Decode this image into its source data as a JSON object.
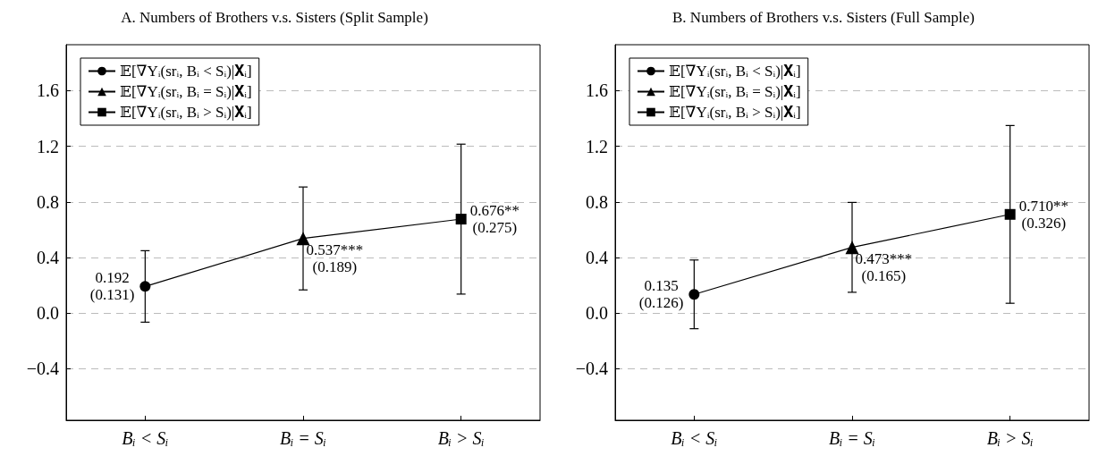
{
  "chart_data": [
    {
      "type": "line",
      "title": "A. Numbers of Brothers v.s. Sisters (Split Sample)",
      "categories": [
        "Bᵢ < Sᵢ",
        "Bᵢ = Sᵢ",
        "Bᵢ > Sᵢ"
      ],
      "series": [
        {
          "color": "#000000",
          "values": [
            0.192,
            0.537,
            0.676
          ],
          "marker": "none"
        },
        {
          "name": "𝔼[∇Yᵢ(srᵢ, Bᵢ < Sᵢ)|𝐗ᵢ]",
          "color": "#000000",
          "marker": "circle",
          "values": [
            0.192,
            null,
            null
          ],
          "errors": [
            [
              -0.065,
              0.449
            ],
            null,
            null
          ],
          "value_labels": [
            "0.192\n(0.131)",
            null,
            null
          ]
        },
        {
          "name": "𝔼[∇Yᵢ(srᵢ, Bᵢ = Sᵢ)|𝐗ᵢ]",
          "color": "#000000",
          "marker": "triangle",
          "values": [
            null,
            0.537,
            null
          ],
          "errors": [
            null,
            [
              0.167,
              0.907
            ],
            null
          ],
          "value_labels": [
            null,
            "0.537***\n(0.189)",
            null
          ]
        },
        {
          "name": "𝔼[∇Yᵢ(srᵢ, Bᵢ > Sᵢ)|𝐗ᵢ]",
          "color": "#000000",
          "marker": "square",
          "values": [
            null,
            null,
            0.676
          ],
          "errors": [
            null,
            null,
            [
              0.137,
              1.215
            ]
          ],
          "value_labels": [
            null,
            null,
            "0.676**\n(0.275)"
          ]
        }
      ],
      "ylim": [
        -0.77,
        1.93
      ],
      "yticks": [
        -0.4,
        {
          "value": 0,
          "label": "0.0"
        },
        0.4,
        0.8,
        1.2,
        1.6
      ],
      "grid": "y",
      "legend": "top left"
    },
    {
      "type": "line",
      "title": "B. Numbers of Brothers v.s. Sisters (Full Sample)",
      "categories": [
        "Bᵢ < Sᵢ",
        "Bᵢ = Sᵢ",
        "Bᵢ > Sᵢ"
      ],
      "series": [
        {
          "color": "#000000",
          "values": [
            0.135,
            0.473,
            0.71
          ],
          "marker": "none"
        },
        {
          "name": "𝔼[∇Yᵢ(srᵢ, Bᵢ < Sᵢ)|𝐗ᵢ]",
          "color": "#000000",
          "marker": "circle",
          "values": [
            0.135,
            null,
            null
          ],
          "errors": [
            [
              -0.112,
              0.382
            ],
            null,
            null
          ],
          "value_labels": [
            "0.135\n(0.126)",
            null,
            null
          ]
        },
        {
          "name": "𝔼[∇Yᵢ(srᵢ, Bᵢ = Sᵢ)|𝐗ᵢ]",
          "color": "#000000",
          "marker": "triangle",
          "values": [
            null,
            0.473,
            null
          ],
          "errors": [
            null,
            [
              0.15,
              0.796
            ],
            null
          ],
          "value_labels": [
            null,
            "0.473***\n(0.165)",
            null
          ]
        },
        {
          "name": "𝔼[∇Yᵢ(srᵢ, Bᵢ > Sᵢ)|𝐗ᵢ]",
          "color": "#000000",
          "marker": "square",
          "values": [
            null,
            null,
            0.71
          ],
          "errors": [
            null,
            null,
            [
              0.071,
              1.349
            ]
          ],
          "value_labels": [
            null,
            null,
            "0.710**\n(0.326)"
          ]
        }
      ],
      "ylim": [
        -0.77,
        1.93
      ],
      "yticks": [
        -0.4,
        {
          "value": 0,
          "label": "0.0"
        },
        0.4,
        0.8,
        1.2,
        1.6
      ],
      "grid": "y",
      "legend": "top left"
    }
  ]
}
